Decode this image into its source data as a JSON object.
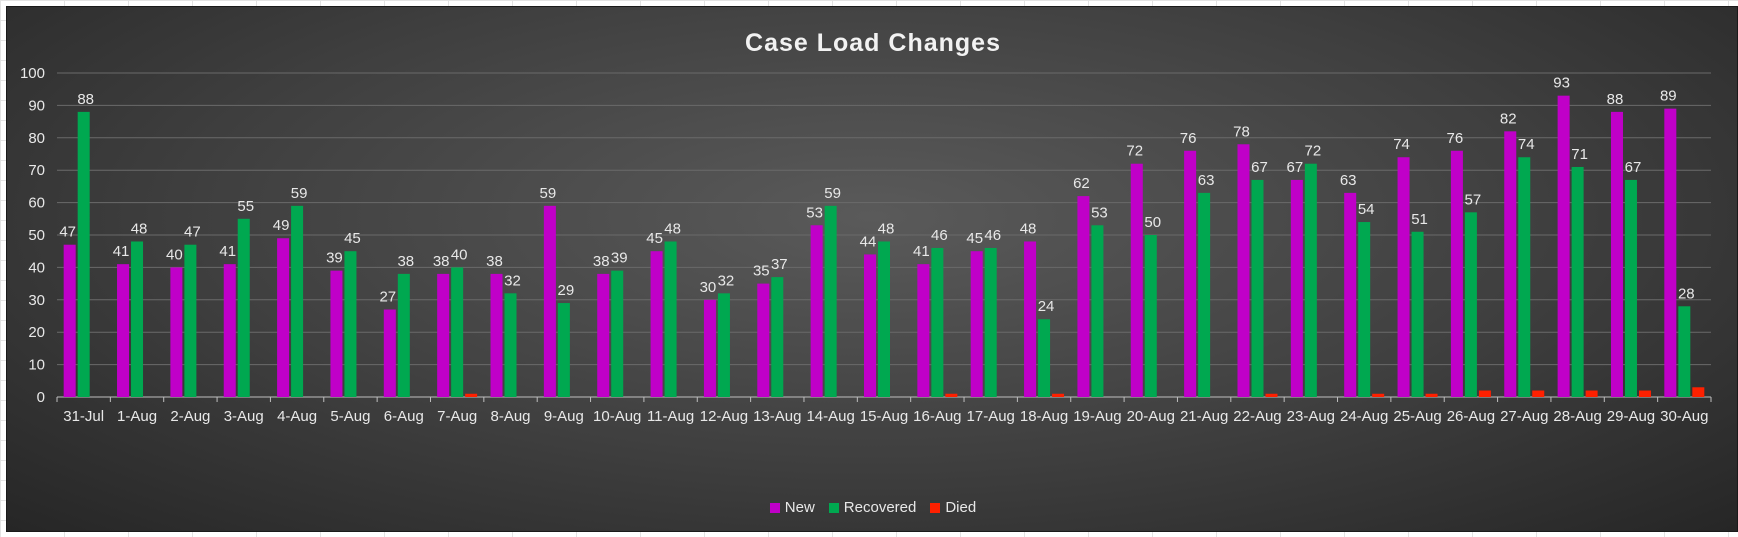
{
  "chart_data": {
    "type": "bar",
    "title": "Case Load Changes",
    "xlabel": "",
    "ylabel": "",
    "ylim": [
      0,
      100
    ],
    "yticks": [
      0,
      10,
      20,
      30,
      40,
      50,
      60,
      70,
      80,
      90,
      100
    ],
    "grid": true,
    "legend_position": "bottom",
    "categories": [
      "31-Jul",
      "1-Aug",
      "2-Aug",
      "3-Aug",
      "4-Aug",
      "5-Aug",
      "6-Aug",
      "7-Aug",
      "8-Aug",
      "9-Aug",
      "10-Aug",
      "11-Aug",
      "12-Aug",
      "13-Aug",
      "14-Aug",
      "15-Aug",
      "16-Aug",
      "17-Aug",
      "18-Aug",
      "19-Aug",
      "20-Aug",
      "21-Aug",
      "22-Aug",
      "23-Aug",
      "24-Aug",
      "25-Aug",
      "26-Aug",
      "27-Aug",
      "28-Aug",
      "29-Aug",
      "30-Aug"
    ],
    "series": [
      {
        "name": "New",
        "color": "#c000c8",
        "values": [
          47,
          41,
          40,
          41,
          49,
          39,
          27,
          38,
          38,
          59,
          38,
          45,
          30,
          35,
          53,
          44,
          41,
          45,
          48,
          62,
          72,
          76,
          78,
          67,
          63,
          74,
          76,
          82,
          93,
          88,
          89
        ]
      },
      {
        "name": "Recovered",
        "color": "#00a850",
        "values": [
          88,
          48,
          47,
          55,
          59,
          45,
          38,
          40,
          32,
          29,
          39,
          48,
          32,
          37,
          59,
          48,
          46,
          46,
          24,
          53,
          50,
          63,
          67,
          72,
          54,
          51,
          57,
          74,
          71,
          67,
          28
        ]
      },
      {
        "name": "Died",
        "color": "#ff2000",
        "values": [
          0,
          0,
          0,
          0,
          0,
          0,
          0,
          1,
          0,
          0,
          0,
          0,
          0,
          0,
          0,
          0,
          1,
          0,
          1,
          0,
          0,
          0,
          1,
          0,
          1,
          1,
          2,
          2,
          2,
          2,
          3
        ]
      }
    ]
  }
}
